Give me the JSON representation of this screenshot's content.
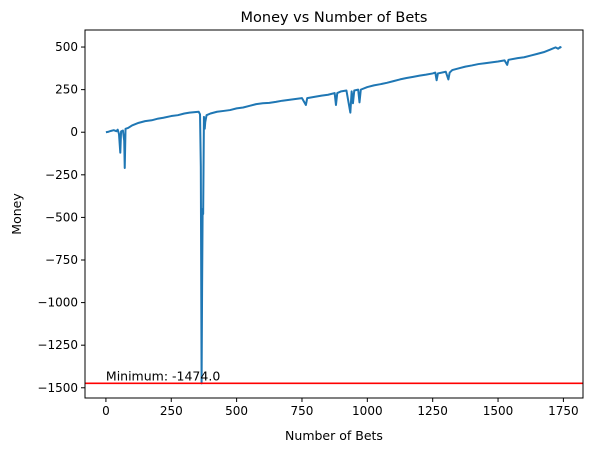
{
  "chart_data": {
    "type": "line",
    "title": "Money vs Number of Bets",
    "xlabel": "Number of Bets",
    "ylabel": "Money",
    "xlim": [
      -80,
      1825
    ],
    "ylim": [
      -1560,
      600
    ],
    "xticks": [
      0,
      250,
      500,
      750,
      1000,
      1250,
      1500,
      1750
    ],
    "xtick_labels": [
      "0",
      "250",
      "500",
      "750",
      "1000",
      "1250",
      "1500",
      "1750"
    ],
    "yticks": [
      -1500,
      -1250,
      -1000,
      -750,
      -500,
      -250,
      0,
      250,
      500
    ],
    "ytick_labels": [
      "−1500",
      "−1250",
      "−1000",
      "−750",
      "−500",
      "−250",
      "0",
      "250",
      "500"
    ],
    "grid": false,
    "series": [
      {
        "color": "#1f77b4",
        "points": [
          [
            0,
            0
          ],
          [
            10,
            3
          ],
          [
            20,
            8
          ],
          [
            30,
            12
          ],
          [
            40,
            6
          ],
          [
            45,
            15
          ],
          [
            50,
            -10
          ],
          [
            55,
            -120
          ],
          [
            58,
            5
          ],
          [
            65,
            10
          ],
          [
            70,
            -50
          ],
          [
            72,
            -210
          ],
          [
            75,
            20
          ],
          [
            85,
            25
          ],
          [
            100,
            40
          ],
          [
            125,
            55
          ],
          [
            150,
            65
          ],
          [
            175,
            70
          ],
          [
            200,
            80
          ],
          [
            220,
            85
          ],
          [
            250,
            95
          ],
          [
            275,
            100
          ],
          [
            300,
            110
          ],
          [
            320,
            115
          ],
          [
            340,
            118
          ],
          [
            355,
            120
          ],
          [
            360,
            105
          ],
          [
            363,
            -200
          ],
          [
            366,
            -1474
          ],
          [
            368,
            -900
          ],
          [
            370,
            -450
          ],
          [
            372,
            -480
          ],
          [
            375,
            90
          ],
          [
            378,
            20
          ],
          [
            380,
            60
          ],
          [
            385,
            100
          ],
          [
            400,
            110
          ],
          [
            425,
            120
          ],
          [
            450,
            125
          ],
          [
            475,
            130
          ],
          [
            500,
            140
          ],
          [
            525,
            145
          ],
          [
            550,
            155
          ],
          [
            575,
            165
          ],
          [
            600,
            170
          ],
          [
            625,
            172
          ],
          [
            650,
            178
          ],
          [
            675,
            185
          ],
          [
            700,
            190
          ],
          [
            725,
            195
          ],
          [
            750,
            200
          ],
          [
            765,
            160
          ],
          [
            770,
            200
          ],
          [
            800,
            208
          ],
          [
            825,
            215
          ],
          [
            850,
            220
          ],
          [
            875,
            230
          ],
          [
            880,
            160
          ],
          [
            885,
            230
          ],
          [
            900,
            240
          ],
          [
            920,
            245
          ],
          [
            935,
            115
          ],
          [
            940,
            240
          ],
          [
            945,
            170
          ],
          [
            950,
            245
          ],
          [
            965,
            250
          ],
          [
            970,
            175
          ],
          [
            975,
            250
          ],
          [
            1000,
            265
          ],
          [
            1025,
            275
          ],
          [
            1050,
            282
          ],
          [
            1075,
            290
          ],
          [
            1100,
            300
          ],
          [
            1125,
            310
          ],
          [
            1150,
            318
          ],
          [
            1175,
            325
          ],
          [
            1200,
            332
          ],
          [
            1225,
            338
          ],
          [
            1250,
            345
          ],
          [
            1260,
            350
          ],
          [
            1265,
            305
          ],
          [
            1270,
            345
          ],
          [
            1300,
            355
          ],
          [
            1310,
            310
          ],
          [
            1315,
            350
          ],
          [
            1325,
            365
          ],
          [
            1350,
            375
          ],
          [
            1375,
            385
          ],
          [
            1400,
            392
          ],
          [
            1425,
            400
          ],
          [
            1450,
            405
          ],
          [
            1475,
            410
          ],
          [
            1500,
            415
          ],
          [
            1525,
            422
          ],
          [
            1535,
            395
          ],
          [
            1540,
            425
          ],
          [
            1575,
            435
          ],
          [
            1600,
            440
          ],
          [
            1625,
            450
          ],
          [
            1650,
            460
          ],
          [
            1675,
            470
          ],
          [
            1700,
            485
          ],
          [
            1720,
            498
          ],
          [
            1730,
            490
          ],
          [
            1738,
            500
          ],
          [
            1742,
            495
          ]
        ]
      }
    ],
    "hlines": [
      {
        "y": -1474,
        "color": "#ff0000",
        "label": "Minimum: -1474.0",
        "label_x": 0
      }
    ]
  }
}
